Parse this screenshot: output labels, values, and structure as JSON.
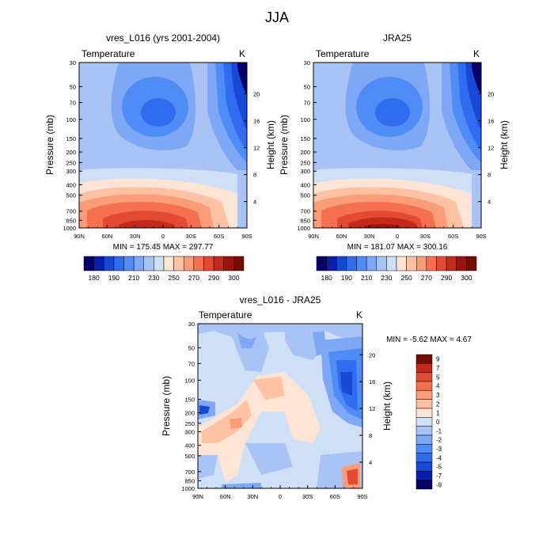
{
  "figure": {
    "title": "JJA"
  },
  "chart_data": [
    {
      "type": "heatmap",
      "id": "p1",
      "title": "vres_L016 (yrs 2001-2004)",
      "left_string": "Temperature",
      "right_string": "K",
      "xlabel": "",
      "ylabel": "Pressure (mb)",
      "y2label": "Height (km)",
      "xticks": [
        "90N",
        "60N",
        "30N",
        "0",
        "30S",
        "60S",
        "90S"
      ],
      "yticks": [
        30,
        50,
        70,
        100,
        150,
        200,
        250,
        300,
        400,
        500,
        700,
        850,
        1000
      ],
      "y2ticks": [
        4,
        8,
        12,
        16,
        20
      ],
      "ylim": [
        1000,
        30
      ],
      "stats": "MIN = 175.45   MAX = 297.77",
      "stats_min": 175.45,
      "stats_max": 297.77
    },
    {
      "type": "heatmap",
      "id": "p2",
      "title": "JRA25",
      "left_string": "Temperature",
      "right_string": "K",
      "xlabel": "",
      "ylabel": "Pressure (mb)",
      "y2label": "Height (km)",
      "xticks": [
        "90N",
        "60N",
        "30N",
        "0",
        "30S",
        "60S",
        "90S"
      ],
      "yticks": [
        30,
        50,
        70,
        100,
        150,
        200,
        250,
        300,
        400,
        500,
        700,
        850,
        1000
      ],
      "y2ticks": [
        4,
        8,
        12,
        16,
        20
      ],
      "ylim": [
        1000,
        30
      ],
      "stats": "MIN = 181.07   MAX = 300.16",
      "stats_min": 181.07,
      "stats_max": 300.16
    },
    {
      "type": "heatmap",
      "id": "p3",
      "title": "vres_L016 - JRA25",
      "left_string": "Temperature",
      "right_string": "K",
      "xlabel": "",
      "ylabel": "Pressure (mb)",
      "y2label": "Height (km)",
      "xticks": [
        "90N",
        "60N",
        "30N",
        "0",
        "30S",
        "60S",
        "90S"
      ],
      "yticks": [
        30,
        50,
        70,
        100,
        150,
        200,
        250,
        300,
        400,
        500,
        700,
        850,
        1000
      ],
      "y2ticks": [
        4,
        8,
        12,
        16,
        20
      ],
      "ylim": [
        1000,
        30
      ],
      "stats": "MIN =  -5.62   MAX =    4.67",
      "stats_min": -5.62,
      "stats_max": 4.67
    }
  ],
  "colorbar_abs": {
    "labels": [
      "180",
      "190",
      "210",
      "230",
      "250",
      "270",
      "290",
      "300"
    ],
    "colors": [
      "#08006b",
      "#0a1fa8",
      "#1848d6",
      "#2f6cf0",
      "#4f8cf6",
      "#7ea7f5",
      "#a8c3f4",
      "#cfdff6",
      "#fde4d5",
      "#fcc2a3",
      "#fa9c78",
      "#f4704f",
      "#e34a33",
      "#c42a1c",
      "#9a130e",
      "#730b06"
    ]
  },
  "colorbar_diff": {
    "labels": [
      "9",
      "7",
      "5",
      "4",
      "3",
      "2",
      "1",
      "0",
      "-1",
      "-2",
      "-3",
      "-4",
      "-5",
      "-7",
      "-9"
    ],
    "colors": [
      "#730b06",
      "#c42a1c",
      "#e34a33",
      "#f4704f",
      "#fa9c78",
      "#fcc2a3",
      "#fde4d5",
      "#cfdff6",
      "#a8c3f4",
      "#7ea7f5",
      "#4f8cf6",
      "#2f6cf0",
      "#1848d6",
      "#0a1fa8",
      "#08006b"
    ]
  }
}
